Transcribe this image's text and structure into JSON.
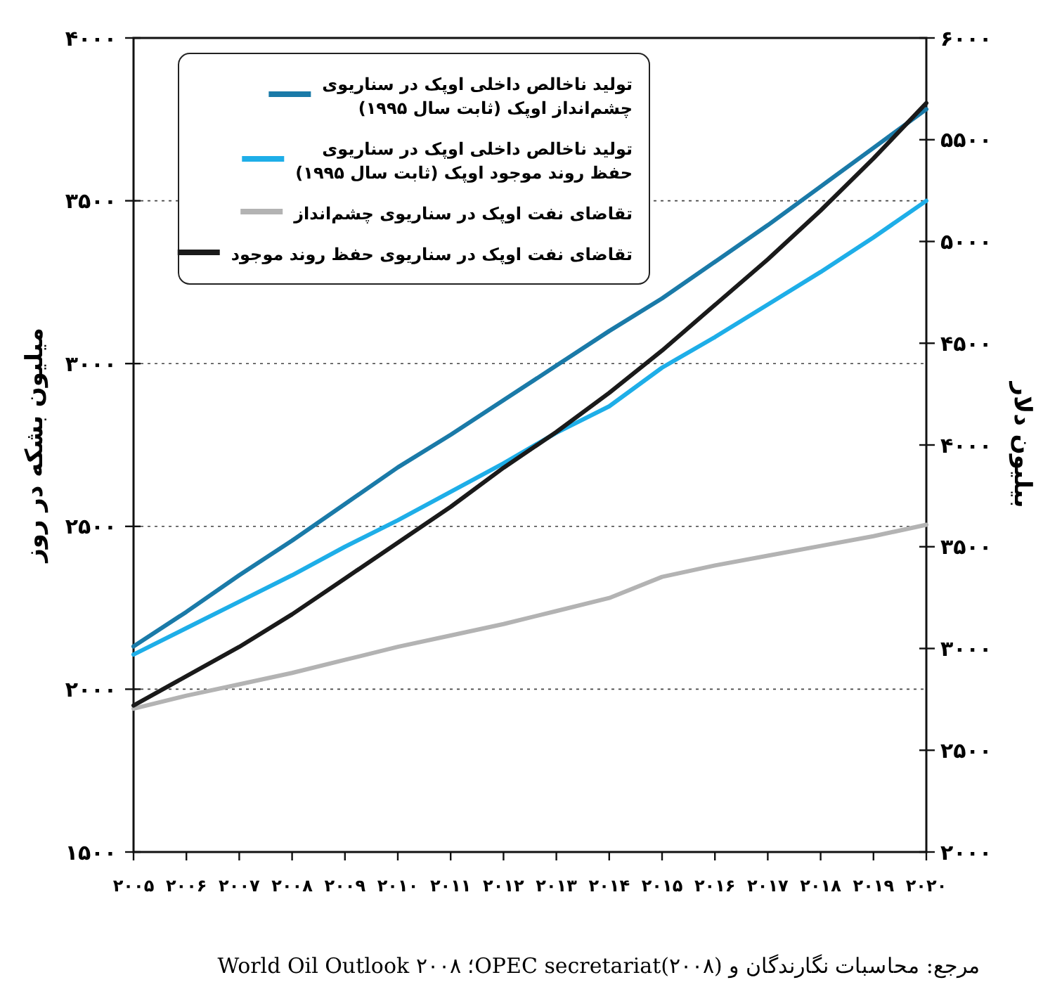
{
  "chart_data": {
    "type": "line",
    "x": [
      2005,
      2006,
      2007,
      2008,
      2009,
      2010,
      2011,
      2012,
      2013,
      2014,
      2015,
      2016,
      2017,
      2018,
      2019,
      2020
    ],
    "xlim": [
      2005,
      2020
    ],
    "xticks": [
      {
        "value": 2005,
        "label": "۲۰۰۵"
      },
      {
        "value": 2006,
        "label": "۲۰۰۶"
      },
      {
        "value": 2007,
        "label": "۲۰۰۷"
      },
      {
        "value": 2008,
        "label": "۲۰۰۸"
      },
      {
        "value": 2009,
        "label": "۲۰۰۹"
      },
      {
        "value": 2010,
        "label": "۲۰۱۰"
      },
      {
        "value": 2011,
        "label": "۲۰۱۱"
      },
      {
        "value": 2012,
        "label": "۲۰۱۲"
      },
      {
        "value": 2013,
        "label": "۲۰۱۳"
      },
      {
        "value": 2014,
        "label": "۲۰۱۴"
      },
      {
        "value": 2015,
        "label": "۲۰۱۵"
      },
      {
        "value": 2016,
        "label": "۲۰۱۶"
      },
      {
        "value": 2017,
        "label": "۲۰۱۷"
      },
      {
        "value": 2018,
        "label": "۲۰۱۸"
      },
      {
        "value": 2019,
        "label": "۲۰۱۹"
      },
      {
        "value": 2020,
        "label": "۲۰۲۰"
      }
    ],
    "ylim": [
      1500,
      4000
    ],
    "yticks": [
      {
        "value": 1500,
        "label": "۱۵۰۰"
      },
      {
        "value": 2000,
        "label": "۲۰۰۰"
      },
      {
        "value": 2500,
        "label": "۲۵۰۰"
      },
      {
        "value": 3000,
        "label": "۳۰۰۰"
      },
      {
        "value": 3500,
        "label": "۳۵۰۰"
      },
      {
        "value": 4000,
        "label": "۴۰۰۰"
      }
    ],
    "y2lim": [
      2000,
      6000
    ],
    "y2ticks": [
      {
        "value": 2000,
        "label": "۲۰۰۰"
      },
      {
        "value": 2500,
        "label": "۲۵۰۰"
      },
      {
        "value": 3000,
        "label": "۳۰۰۰"
      },
      {
        "value": 3500,
        "label": "۳۵۰۰"
      },
      {
        "value": 4000,
        "label": "۴۰۰۰"
      },
      {
        "value": 4500,
        "label": "۴۵۰۰"
      },
      {
        "value": 5000,
        "label": "۵۰۰۰"
      },
      {
        "value": 5500,
        "label": "۵۵۰۰"
      },
      {
        "value": 6000,
        "label": "۶۰۰۰"
      }
    ],
    "ylabel": "میلیون بشکه در روز",
    "y2label": "بیلیون دلار",
    "grid": "y",
    "legend": "top left",
    "series": [
      {
        "name": "تولید ناخالص داخلی اوپک در سناریوی چشم‌انداز اوپک (ثابت سال ۱۹۹۵)",
        "color": "#1a7aa8",
        "axis": "y2",
        "values": [
          3010,
          3180,
          3360,
          3530,
          3710,
          3890,
          4050,
          4220,
          4390,
          4560,
          4720,
          4900,
          5080,
          5270,
          5460,
          5650
        ]
      },
      {
        "name": "تولید ناخالص داخلی اوپک در سناریوی حفظ روند موجود اوپک (ثابت سال ۱۹۹۵)",
        "color": "#1eaee8",
        "axis": "y2",
        "values": [
          2970,
          3100,
          3230,
          3360,
          3500,
          3630,
          3770,
          3910,
          4060,
          4190,
          4380,
          4530,
          4690,
          4850,
          5020,
          5200
        ]
      },
      {
        "name": "تقاضای نفت اوپک در سناریوی چشم‌انداز",
        "color": "#b3b3b3",
        "values": [
          1940,
          1980,
          2015,
          2050,
          2090,
          2130,
          2165,
          2200,
          2240,
          2280,
          2345,
          2380,
          2410,
          2440,
          2470,
          2505
        ]
      },
      {
        "name": "تقاضای نفت اوپک در سناریوی حفظ روند موجود",
        "color": "#1a1a1a",
        "values": [
          1950,
          2040,
          2130,
          2230,
          2340,
          2450,
          2560,
          2680,
          2790,
          2910,
          3040,
          3180,
          3320,
          3470,
          3630,
          3800
        ]
      }
    ],
    "annotations": [
      "مرجع: محاسبات نگارندگان و OPEC secretariat(۲۰۰۸)؛ World Oil Outlook ۲۰۰۸"
    ]
  }
}
